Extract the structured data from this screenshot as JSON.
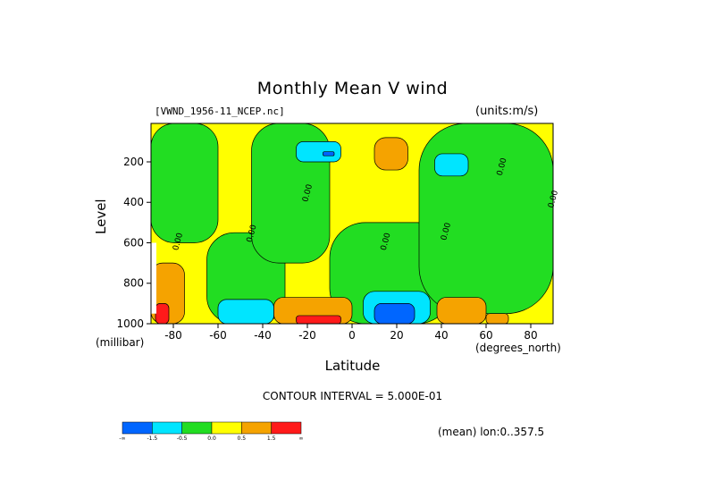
{
  "chart_data": {
    "type": "heatmap",
    "title": "Monthly Mean V wind",
    "dataset": "[VWND_1956-11_NCEP.nc]",
    "units": "(units:m/s)",
    "xlabel": "Latitude",
    "xunit": "(degrees_north)",
    "ylabel": "Level",
    "yunit": "(millibar)",
    "xlim": [
      -90,
      90
    ],
    "ylim": [
      1000,
      10
    ],
    "xticks": [
      -80,
      -60,
      -40,
      -20,
      0,
      20,
      40,
      60,
      80
    ],
    "yticks": [
      200,
      400,
      600,
      800,
      1000
    ],
    "contour_interval": "CONTOUR INTERVAL = 5.000E-01",
    "contour_labels": [
      "0.00",
      "0.00",
      "0.00",
      "0.00",
      "0.00",
      "0.00",
      "0.00"
    ],
    "footer": "(mean) lon:0..357.5",
    "colorbar": {
      "labels": [
        "-∞",
        "-1.5",
        "-0.5",
        "0.0",
        "0.5",
        "1.5",
        "∞"
      ],
      "colors": [
        "#0066ff",
        "#00e5ff",
        "#22dd22",
        "#ffff00",
        "#f5a300",
        "#ff1a1a"
      ]
    },
    "regions": [
      {
        "level": "yellow",
        "color": "#ffff00",
        "lat": [
          -90,
          90
        ],
        "p": [
          10,
          1000
        ]
      },
      {
        "level": "green",
        "color": "#22dd22",
        "lat": [
          -90,
          -60
        ],
        "p": [
          10,
          600
        ]
      },
      {
        "level": "green",
        "color": "#22dd22",
        "lat": [
          -65,
          -30
        ],
        "p": [
          550,
          1000
        ]
      },
      {
        "level": "green",
        "color": "#22dd22",
        "lat": [
          -45,
          -10
        ],
        "p": [
          10,
          700
        ]
      },
      {
        "level": "green",
        "color": "#22dd22",
        "lat": [
          -10,
          45
        ],
        "p": [
          500,
          1000
        ]
      },
      {
        "level": "green",
        "color": "#22dd22",
        "lat": [
          30,
          90
        ],
        "p": [
          10,
          950
        ]
      },
      {
        "level": "cyan",
        "color": "#00e5ff",
        "lat": [
          -25,
          -5
        ],
        "p": [
          100,
          200
        ]
      },
      {
        "level": "blue",
        "color": "#0066ff",
        "lat": [
          -13,
          -8
        ],
        "p": [
          150,
          170
        ]
      },
      {
        "level": "orange",
        "color": "#f5a300",
        "lat": [
          10,
          25
        ],
        "p": [
          80,
          240
        ]
      },
      {
        "level": "cyan",
        "color": "#00e5ff",
        "lat": [
          37,
          52
        ],
        "p": [
          160,
          270
        ]
      },
      {
        "level": "orange",
        "color": "#f5a300",
        "lat": [
          -90,
          -75
        ],
        "p": [
          700,
          1000
        ]
      },
      {
        "level": "red",
        "color": "#ff1a1a",
        "lat": [
          -88,
          -82
        ],
        "p": [
          900,
          1000
        ]
      },
      {
        "level": "cyan",
        "color": "#00e5ff",
        "lat": [
          -60,
          -35
        ],
        "p": [
          880,
          1000
        ]
      },
      {
        "level": "orange",
        "color": "#f5a300",
        "lat": [
          -35,
          0
        ],
        "p": [
          870,
          1000
        ]
      },
      {
        "level": "red",
        "color": "#ff1a1a",
        "lat": [
          -25,
          -5
        ],
        "p": [
          960,
          1000
        ]
      },
      {
        "level": "cyan",
        "color": "#00e5ff",
        "lat": [
          5,
          35
        ],
        "p": [
          840,
          1000
        ]
      },
      {
        "level": "blue",
        "color": "#0066ff",
        "lat": [
          10,
          28
        ],
        "p": [
          900,
          1000
        ]
      },
      {
        "level": "orange",
        "color": "#f5a300",
        "lat": [
          38,
          60
        ],
        "p": [
          870,
          1000
        ]
      },
      {
        "level": "orange",
        "color": "#f5a300",
        "lat": [
          60,
          70
        ],
        "p": [
          950,
          1000
        ]
      }
    ]
  }
}
